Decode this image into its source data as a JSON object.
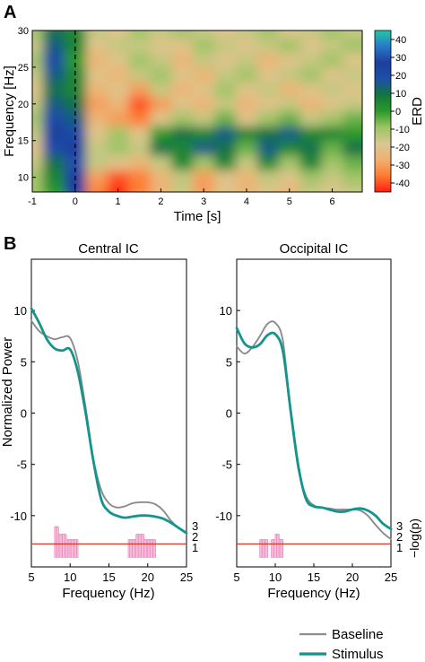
{
  "panel_labels": [
    "A",
    "B"
  ],
  "chart_data": [
    {
      "type": "heatmap",
      "title": "",
      "xlabel": "Time [s]",
      "ylabel": "Frequency [Hz]",
      "xlim": [
        -1,
        6.7
      ],
      "ylim": [
        8,
        30
      ],
      "x_ticks": [
        -1,
        0,
        1,
        2,
        3,
        4,
        5,
        6
      ],
      "y_ticks": [
        10,
        15,
        20,
        25,
        30
      ],
      "stimulus_onset": 0,
      "stimulus_line_style": "dashed",
      "colorbar": {
        "label": "ERD",
        "range": [
          -45,
          45
        ],
        "ticks": [
          40,
          30,
          20,
          10,
          0,
          -10,
          -20,
          -30,
          -40
        ],
        "colormap": [
          "#ff2010",
          "#ff7a30",
          "#f0b070",
          "#d8c890",
          "#9cc464",
          "#2a9a2a",
          "#14763c",
          "#1c50a8",
          "#1e3d9e",
          "#2878c8",
          "#20c8a8"
        ]
      },
      "x": [
        -1,
        -0.5,
        0,
        0.5,
        1,
        1.5,
        2,
        2.5,
        3,
        3.5,
        4,
        4.5,
        5,
        5.5,
        6,
        6.5
      ],
      "y": [
        8,
        10,
        12,
        14,
        16,
        18,
        20,
        22,
        24,
        26,
        28,
        30
      ],
      "values": [
        [
          -10,
          0,
          25,
          -35,
          -45,
          -35,
          -25,
          -15,
          -30,
          -20,
          -25,
          -20,
          -25,
          -15,
          -20,
          -15
        ],
        [
          -10,
          5,
          25,
          -30,
          -40,
          -35,
          -25,
          -15,
          -30,
          -20,
          -25,
          -15,
          -20,
          -10,
          -15,
          -10
        ],
        [
          -15,
          10,
          30,
          -15,
          -20,
          -25,
          -15,
          5,
          -10,
          5,
          -15,
          5,
          -10,
          5,
          -10,
          -5
        ],
        [
          -20,
          20,
          25,
          -15,
          -10,
          -15,
          10,
          5,
          15,
          10,
          -5,
          15,
          5,
          10,
          -5,
          10
        ],
        [
          -15,
          25,
          20,
          -20,
          -10,
          -20,
          0,
          10,
          5,
          15,
          5,
          10,
          15,
          5,
          5,
          0
        ],
        [
          -10,
          20,
          15,
          -25,
          -30,
          -35,
          -20,
          -10,
          -15,
          -5,
          -20,
          -10,
          -5,
          -15,
          -10,
          -5
        ],
        [
          -15,
          15,
          10,
          -30,
          -25,
          -40,
          -30,
          -20,
          -25,
          -15,
          -25,
          -20,
          -15,
          -25,
          -20,
          -15
        ],
        [
          -20,
          10,
          5,
          -25,
          -20,
          -30,
          -15,
          -25,
          -20,
          -10,
          -20,
          -15,
          -25,
          -20,
          -15,
          -20
        ],
        [
          -15,
          15,
          5,
          -20,
          -25,
          -15,
          -10,
          -20,
          -25,
          -15,
          -10,
          -20,
          -15,
          -10,
          -20,
          -15
        ],
        [
          -10,
          20,
          0,
          -25,
          -20,
          -10,
          -15,
          -25,
          -15,
          -20,
          -15,
          -25,
          -20,
          -15,
          -10,
          -20
        ],
        [
          -15,
          15,
          5,
          -20,
          -15,
          -15,
          -20,
          -20,
          -10,
          -15,
          -20,
          -15,
          -10,
          -20,
          -15,
          -10
        ],
        [
          -10,
          10,
          5,
          -15,
          -20,
          -10,
          -15,
          -10,
          -15,
          -20,
          -15,
          -10,
          -20,
          -15,
          -10,
          -15
        ]
      ]
    },
    {
      "type": "line",
      "title": "Central IC",
      "xlabel": "Frequency (Hz)",
      "ylabel": "Normalized Power",
      "xlim": [
        5,
        25
      ],
      "ylim": [
        -15,
        15
      ],
      "x_ticks": [
        5,
        10,
        15,
        20,
        25
      ],
      "y_ticks": [
        10,
        5,
        0,
        -5,
        -10
      ],
      "x": [
        5,
        6,
        7,
        8,
        9,
        10,
        11,
        12,
        13,
        14,
        15,
        16,
        17,
        18,
        19,
        20,
        21,
        22,
        23,
        24,
        25
      ],
      "series": [
        {
          "name": "Baseline",
          "color": "#8c8c8c",
          "values": [
            9,
            8,
            7.5,
            7.2,
            7.4,
            7.3,
            5,
            0.5,
            -4.5,
            -7.5,
            -8.8,
            -9.2,
            -9.1,
            -8.8,
            -8.7,
            -8.7,
            -8.9,
            -9.5,
            -10.5,
            -11.2,
            -11.7
          ]
        },
        {
          "name": "Stimulus",
          "color": "#13958e",
          "values": [
            10.2,
            8.8,
            7.2,
            6.3,
            6.1,
            6.2,
            4,
            0,
            -4.7,
            -8.4,
            -9.6,
            -10,
            -10.2,
            -10.1,
            -10,
            -10,
            -10.1,
            -10.3,
            -10.7,
            -11.2,
            -11.7
          ]
        }
      ],
      "significance": {
        "axis_label": "−log(p)",
        "ticks": [
          1,
          2,
          3
        ],
        "threshold": 1.3,
        "threshold_color": "#d7392c",
        "bar_color": "#f08bbd",
        "x": [
          8.25,
          8.75,
          9.25,
          9.75,
          10.25,
          10.75,
          17.75,
          18.25,
          18.75,
          19.25,
          19.75,
          20.25,
          20.75
        ],
        "values": [
          2.9,
          2.2,
          2.2,
          1.7,
          1.7,
          1.7,
          1.7,
          1.7,
          2.2,
          2.2,
          1.7,
          1.7,
          1.7
        ]
      }
    },
    {
      "type": "line",
      "title": "Occipital IC",
      "xlabel": "Frequency (Hz)",
      "ylabel": "",
      "xlim": [
        5,
        25
      ],
      "ylim": [
        -15,
        15
      ],
      "x_ticks": [
        5,
        10,
        15,
        20,
        25
      ],
      "y_ticks": [
        10,
        5,
        0,
        -5,
        -10
      ],
      "x": [
        5,
        6,
        7,
        8,
        9,
        10,
        11,
        12,
        13,
        14,
        15,
        16,
        17,
        18,
        19,
        20,
        21,
        22,
        23,
        24,
        25
      ],
      "series": [
        {
          "name": "Baseline",
          "color": "#8c8c8c",
          "values": [
            6.5,
            5.8,
            6.4,
            7.5,
            8.7,
            8.8,
            7,
            0,
            -5.5,
            -8.1,
            -9,
            -9.2,
            -9.3,
            -9.4,
            -9.4,
            -9.4,
            -9.5,
            -10,
            -10.9,
            -11.7,
            -12.3
          ]
        },
        {
          "name": "Stimulus",
          "color": "#13958e",
          "values": [
            8.3,
            6.8,
            6.4,
            6.7,
            7.6,
            7.7,
            6,
            0.2,
            -5.2,
            -8.4,
            -9.1,
            -9.2,
            -9.4,
            -9.6,
            -9.6,
            -9.4,
            -9.3,
            -9.5,
            -10,
            -10.8,
            -11.3
          ]
        }
      ],
      "significance": {
        "axis_label": "−log(p)",
        "ticks": [
          1,
          2,
          3
        ],
        "threshold": 1.3,
        "threshold_color": "#d7392c",
        "bar_color": "#f08bbd",
        "x": [
          8.25,
          8.75,
          9.75,
          10.25,
          10.75
        ],
        "values": [
          1.7,
          1.7,
          1.7,
          2.2,
          1.7
        ]
      }
    }
  ],
  "legend": {
    "placement": "bottom-right",
    "items": [
      {
        "label": "Baseline",
        "color": "#8c8c8c"
      },
      {
        "label": "Stimulus",
        "color": "#13958e"
      }
    ]
  }
}
